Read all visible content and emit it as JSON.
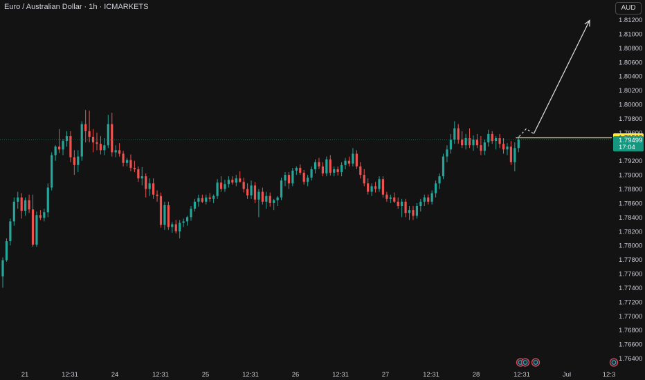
{
  "header": {
    "title": "Euro / Australian Dollar · 1h · ICMARKETS",
    "currency": "AUD"
  },
  "colors": {
    "background": "#131313",
    "up": "#26a69a",
    "down": "#ef5350",
    "last_price_line": "#f2eb8c",
    "last_price_tag": "#ffeb3b",
    "current_tag": "#15967f",
    "arrow": "#d8d8d8"
  },
  "markers": {
    "icons": [
      "event-icon",
      "event-icon",
      "event-icon",
      "event-icon"
    ]
  },
  "chart_data": {
    "type": "candlestick",
    "y_axis": {
      "ticks": [
        "1.81200",
        "1.81000",
        "1.80800",
        "1.80600",
        "1.80400",
        "1.80200",
        "1.80000",
        "1.79800",
        "1.79600",
        "1.79400",
        "1.79200",
        "1.79000",
        "1.78800",
        "1.78600",
        "1.78400",
        "1.78200",
        "1.78000",
        "1.77800",
        "1.77600",
        "1.77400",
        "1.77200",
        "1.77000",
        "1.76800",
        "1.76600",
        "1.76400"
      ],
      "range": [
        1.763,
        1.814
      ]
    },
    "x_axis": {
      "ticks": [
        "21",
        "12:31",
        "24",
        "12:31",
        "25",
        "12:31",
        "26",
        "12:31",
        "27",
        "12:31",
        "28",
        "12:31",
        "Jul",
        "12:3"
      ]
    },
    "price_labels": {
      "horizontal_line": {
        "value": 1.79525,
        "label": "1.79525"
      },
      "current_price": {
        "value": 1.79499,
        "label": "1.79499",
        "countdown": "17:04"
      }
    },
    "candles": [
      {
        "o": 1.7756,
        "h": 1.7783,
        "l": 1.774,
        "c": 1.7779
      },
      {
        "o": 1.7779,
        "h": 1.781,
        "l": 1.7777,
        "c": 1.7806
      },
      {
        "o": 1.7806,
        "h": 1.7838,
        "l": 1.78,
        "c": 1.7834
      },
      {
        "o": 1.7834,
        "h": 1.7868,
        "l": 1.7828,
        "c": 1.7862
      },
      {
        "o": 1.7862,
        "h": 1.7876,
        "l": 1.7852,
        "c": 1.7868
      },
      {
        "o": 1.7868,
        "h": 1.7874,
        "l": 1.7838,
        "c": 1.7849
      },
      {
        "o": 1.7849,
        "h": 1.7868,
        "l": 1.7842,
        "c": 1.7864
      },
      {
        "o": 1.7864,
        "h": 1.7872,
        "l": 1.7846,
        "c": 1.7851
      },
      {
        "o": 1.7851,
        "h": 1.7872,
        "l": 1.7798,
        "c": 1.7801
      },
      {
        "o": 1.7801,
        "h": 1.7848,
        "l": 1.7798,
        "c": 1.7843
      },
      {
        "o": 1.7843,
        "h": 1.785,
        "l": 1.7836,
        "c": 1.7839
      },
      {
        "o": 1.7839,
        "h": 1.7852,
        "l": 1.7834,
        "c": 1.7847
      },
      {
        "o": 1.7847,
        "h": 1.7888,
        "l": 1.784,
        "c": 1.7882
      },
      {
        "o": 1.7882,
        "h": 1.7932,
        "l": 1.7878,
        "c": 1.7928
      },
      {
        "o": 1.7928,
        "h": 1.7942,
        "l": 1.792,
        "c": 1.794
      },
      {
        "o": 1.794,
        "h": 1.7965,
        "l": 1.7931,
        "c": 1.7936
      },
      {
        "o": 1.7936,
        "h": 1.7951,
        "l": 1.7928,
        "c": 1.7948
      },
      {
        "o": 1.7948,
        "h": 1.7962,
        "l": 1.794,
        "c": 1.7955
      },
      {
        "o": 1.7955,
        "h": 1.7962,
        "l": 1.7918,
        "c": 1.7925
      },
      {
        "o": 1.7925,
        "h": 1.7935,
        "l": 1.79,
        "c": 1.7914
      },
      {
        "o": 1.7914,
        "h": 1.7935,
        "l": 1.7904,
        "c": 1.7926
      },
      {
        "o": 1.7926,
        "h": 1.7976,
        "l": 1.792,
        "c": 1.7972
      },
      {
        "o": 1.7972,
        "h": 1.7992,
        "l": 1.7946,
        "c": 1.7962
      },
      {
        "o": 1.7962,
        "h": 1.7991,
        "l": 1.7946,
        "c": 1.7954
      },
      {
        "o": 1.7954,
        "h": 1.7965,
        "l": 1.7932,
        "c": 1.7946
      },
      {
        "o": 1.7946,
        "h": 1.796,
        "l": 1.7935,
        "c": 1.7944
      },
      {
        "o": 1.7944,
        "h": 1.7955,
        "l": 1.7929,
        "c": 1.7935
      },
      {
        "o": 1.7935,
        "h": 1.7952,
        "l": 1.7928,
        "c": 1.7942
      },
      {
        "o": 1.7942,
        "h": 1.7985,
        "l": 1.7938,
        "c": 1.7972
      },
      {
        "o": 1.7972,
        "h": 1.7988,
        "l": 1.7926,
        "c": 1.7932
      },
      {
        "o": 1.7932,
        "h": 1.7942,
        "l": 1.7925,
        "c": 1.7935
      },
      {
        "o": 1.7935,
        "h": 1.7945,
        "l": 1.7926,
        "c": 1.793
      },
      {
        "o": 1.793,
        "h": 1.7934,
        "l": 1.7912,
        "c": 1.7917
      },
      {
        "o": 1.7917,
        "h": 1.7924,
        "l": 1.7912,
        "c": 1.7921
      },
      {
        "o": 1.7921,
        "h": 1.7929,
        "l": 1.7905,
        "c": 1.791
      },
      {
        "o": 1.791,
        "h": 1.792,
        "l": 1.7904,
        "c": 1.7908
      },
      {
        "o": 1.7908,
        "h": 1.7912,
        "l": 1.789,
        "c": 1.7895
      },
      {
        "o": 1.7895,
        "h": 1.7911,
        "l": 1.7885,
        "c": 1.7898
      },
      {
        "o": 1.7898,
        "h": 1.7902,
        "l": 1.7868,
        "c": 1.788
      },
      {
        "o": 1.788,
        "h": 1.7895,
        "l": 1.787,
        "c": 1.7888
      },
      {
        "o": 1.7888,
        "h": 1.7895,
        "l": 1.7866,
        "c": 1.7872
      },
      {
        "o": 1.7872,
        "h": 1.7878,
        "l": 1.7862,
        "c": 1.787
      },
      {
        "o": 1.787,
        "h": 1.7875,
        "l": 1.7825,
        "c": 1.7829
      },
      {
        "o": 1.7829,
        "h": 1.7862,
        "l": 1.7822,
        "c": 1.7857
      },
      {
        "o": 1.7857,
        "h": 1.7862,
        "l": 1.7822,
        "c": 1.7826
      },
      {
        "o": 1.7826,
        "h": 1.7833,
        "l": 1.7818,
        "c": 1.783
      },
      {
        "o": 1.783,
        "h": 1.7836,
        "l": 1.7817,
        "c": 1.782
      },
      {
        "o": 1.782,
        "h": 1.7836,
        "l": 1.781,
        "c": 1.7832
      },
      {
        "o": 1.7832,
        "h": 1.7838,
        "l": 1.7826,
        "c": 1.7834
      },
      {
        "o": 1.7834,
        "h": 1.7842,
        "l": 1.7828,
        "c": 1.784
      },
      {
        "o": 1.784,
        "h": 1.7856,
        "l": 1.7835,
        "c": 1.7852
      },
      {
        "o": 1.7852,
        "h": 1.7866,
        "l": 1.7848,
        "c": 1.7862
      },
      {
        "o": 1.7862,
        "h": 1.7872,
        "l": 1.7855,
        "c": 1.7867
      },
      {
        "o": 1.7867,
        "h": 1.7872,
        "l": 1.786,
        "c": 1.7862
      },
      {
        "o": 1.7862,
        "h": 1.7872,
        "l": 1.7858,
        "c": 1.7868
      },
      {
        "o": 1.7868,
        "h": 1.7874,
        "l": 1.7862,
        "c": 1.7866
      },
      {
        "o": 1.7866,
        "h": 1.7872,
        "l": 1.786,
        "c": 1.787
      },
      {
        "o": 1.787,
        "h": 1.7894,
        "l": 1.7866,
        "c": 1.7889
      },
      {
        "o": 1.7889,
        "h": 1.7898,
        "l": 1.7876,
        "c": 1.788
      },
      {
        "o": 1.788,
        "h": 1.7893,
        "l": 1.7876,
        "c": 1.7887
      },
      {
        "o": 1.7887,
        "h": 1.7898,
        "l": 1.7882,
        "c": 1.7893
      },
      {
        "o": 1.7893,
        "h": 1.7898,
        "l": 1.7886,
        "c": 1.7889
      },
      {
        "o": 1.7889,
        "h": 1.79,
        "l": 1.7884,
        "c": 1.7895
      },
      {
        "o": 1.7895,
        "h": 1.7905,
        "l": 1.7889,
        "c": 1.789
      },
      {
        "o": 1.789,
        "h": 1.7896,
        "l": 1.7875,
        "c": 1.788
      },
      {
        "o": 1.788,
        "h": 1.7888,
        "l": 1.7866,
        "c": 1.7871
      },
      {
        "o": 1.7871,
        "h": 1.7892,
        "l": 1.7866,
        "c": 1.7885
      },
      {
        "o": 1.7885,
        "h": 1.789,
        "l": 1.786,
        "c": 1.7865
      },
      {
        "o": 1.7865,
        "h": 1.788,
        "l": 1.784,
        "c": 1.7876
      },
      {
        "o": 1.7876,
        "h": 1.7882,
        "l": 1.7858,
        "c": 1.7862
      },
      {
        "o": 1.7862,
        "h": 1.7876,
        "l": 1.7852,
        "c": 1.787
      },
      {
        "o": 1.787,
        "h": 1.7875,
        "l": 1.7855,
        "c": 1.786
      },
      {
        "o": 1.786,
        "h": 1.7866,
        "l": 1.785,
        "c": 1.7864
      },
      {
        "o": 1.7864,
        "h": 1.787,
        "l": 1.7856,
        "c": 1.7868
      },
      {
        "o": 1.7868,
        "h": 1.7896,
        "l": 1.7864,
        "c": 1.7892
      },
      {
        "o": 1.7892,
        "h": 1.7904,
        "l": 1.7884,
        "c": 1.79
      },
      {
        "o": 1.79,
        "h": 1.7904,
        "l": 1.788,
        "c": 1.7888
      },
      {
        "o": 1.7888,
        "h": 1.791,
        "l": 1.7884,
        "c": 1.7906
      },
      {
        "o": 1.7906,
        "h": 1.7912,
        "l": 1.79,
        "c": 1.791
      },
      {
        "o": 1.791,
        "h": 1.7915,
        "l": 1.79,
        "c": 1.7903
      },
      {
        "o": 1.7903,
        "h": 1.7907,
        "l": 1.7886,
        "c": 1.789
      },
      {
        "o": 1.789,
        "h": 1.79,
        "l": 1.7884,
        "c": 1.7896
      },
      {
        "o": 1.7896,
        "h": 1.7912,
        "l": 1.7892,
        "c": 1.7908
      },
      {
        "o": 1.7908,
        "h": 1.7922,
        "l": 1.7902,
        "c": 1.7918
      },
      {
        "o": 1.7918,
        "h": 1.7924,
        "l": 1.7908,
        "c": 1.7912
      },
      {
        "o": 1.7912,
        "h": 1.7918,
        "l": 1.7898,
        "c": 1.7902
      },
      {
        "o": 1.7902,
        "h": 1.7926,
        "l": 1.7898,
        "c": 1.7922
      },
      {
        "o": 1.7922,
        "h": 1.7928,
        "l": 1.7899,
        "c": 1.7903
      },
      {
        "o": 1.7903,
        "h": 1.7912,
        "l": 1.7898,
        "c": 1.7908
      },
      {
        "o": 1.7908,
        "h": 1.7912,
        "l": 1.7899,
        "c": 1.7904
      },
      {
        "o": 1.7904,
        "h": 1.7918,
        "l": 1.7898,
        "c": 1.7914
      },
      {
        "o": 1.7914,
        "h": 1.7924,
        "l": 1.7908,
        "c": 1.792
      },
      {
        "o": 1.792,
        "h": 1.7926,
        "l": 1.7912,
        "c": 1.7916
      },
      {
        "o": 1.7916,
        "h": 1.7938,
        "l": 1.7912,
        "c": 1.793
      },
      {
        "o": 1.793,
        "h": 1.7935,
        "l": 1.7908,
        "c": 1.7912
      },
      {
        "o": 1.7912,
        "h": 1.7918,
        "l": 1.7895,
        "c": 1.79
      },
      {
        "o": 1.79,
        "h": 1.7908,
        "l": 1.7884,
        "c": 1.7888
      },
      {
        "o": 1.7888,
        "h": 1.7895,
        "l": 1.7872,
        "c": 1.7876
      },
      {
        "o": 1.7876,
        "h": 1.7888,
        "l": 1.787,
        "c": 1.7884
      },
      {
        "o": 1.7884,
        "h": 1.789,
        "l": 1.7875,
        "c": 1.788
      },
      {
        "o": 1.788,
        "h": 1.7898,
        "l": 1.7876,
        "c": 1.7894
      },
      {
        "o": 1.7894,
        "h": 1.7898,
        "l": 1.7868,
        "c": 1.7872
      },
      {
        "o": 1.7872,
        "h": 1.7876,
        "l": 1.7862,
        "c": 1.7866
      },
      {
        "o": 1.7866,
        "h": 1.7872,
        "l": 1.786,
        "c": 1.7868
      },
      {
        "o": 1.7868,
        "h": 1.7875,
        "l": 1.786,
        "c": 1.7862
      },
      {
        "o": 1.7862,
        "h": 1.7868,
        "l": 1.7852,
        "c": 1.7856
      },
      {
        "o": 1.7856,
        "h": 1.7866,
        "l": 1.784,
        "c": 1.7862
      },
      {
        "o": 1.7862,
        "h": 1.7866,
        "l": 1.784,
        "c": 1.7846
      },
      {
        "o": 1.7846,
        "h": 1.7856,
        "l": 1.7836,
        "c": 1.785
      },
      {
        "o": 1.785,
        "h": 1.7856,
        "l": 1.7836,
        "c": 1.7842
      },
      {
        "o": 1.7842,
        "h": 1.786,
        "l": 1.7838,
        "c": 1.7856
      },
      {
        "o": 1.7856,
        "h": 1.7866,
        "l": 1.7848,
        "c": 1.7862
      },
      {
        "o": 1.7862,
        "h": 1.7872,
        "l": 1.7856,
        "c": 1.7868
      },
      {
        "o": 1.7868,
        "h": 1.7872,
        "l": 1.7858,
        "c": 1.7862
      },
      {
        "o": 1.7862,
        "h": 1.7878,
        "l": 1.7858,
        "c": 1.7874
      },
      {
        "o": 1.7874,
        "h": 1.7892,
        "l": 1.7868,
        "c": 1.7888
      },
      {
        "o": 1.7888,
        "h": 1.7902,
        "l": 1.788,
        "c": 1.7898
      },
      {
        "o": 1.7898,
        "h": 1.793,
        "l": 1.7894,
        "c": 1.7926
      },
      {
        "o": 1.7926,
        "h": 1.7942,
        "l": 1.7918,
        "c": 1.7936
      },
      {
        "o": 1.7936,
        "h": 1.7958,
        "l": 1.793,
        "c": 1.795
      },
      {
        "o": 1.795,
        "h": 1.7976,
        "l": 1.7944,
        "c": 1.7966
      },
      {
        "o": 1.7966,
        "h": 1.7972,
        "l": 1.7944,
        "c": 1.795
      },
      {
        "o": 1.795,
        "h": 1.7962,
        "l": 1.7938,
        "c": 1.7942
      },
      {
        "o": 1.7942,
        "h": 1.7958,
        "l": 1.7936,
        "c": 1.7952
      },
      {
        "o": 1.7952,
        "h": 1.7966,
        "l": 1.7938,
        "c": 1.7942
      },
      {
        "o": 1.7942,
        "h": 1.7956,
        "l": 1.7934,
        "c": 1.795
      },
      {
        "o": 1.795,
        "h": 1.7958,
        "l": 1.7938,
        "c": 1.7942
      },
      {
        "o": 1.7942,
        "h": 1.7955,
        "l": 1.7928,
        "c": 1.7934
      },
      {
        "o": 1.7934,
        "h": 1.795,
        "l": 1.7928,
        "c": 1.7946
      },
      {
        "o": 1.7946,
        "h": 1.7964,
        "l": 1.794,
        "c": 1.7958
      },
      {
        "o": 1.7958,
        "h": 1.7962,
        "l": 1.7944,
        "c": 1.7948
      },
      {
        "o": 1.7948,
        "h": 1.7955,
        "l": 1.7936,
        "c": 1.7952
      },
      {
        "o": 1.7952,
        "h": 1.7958,
        "l": 1.7938,
        "c": 1.7944
      },
      {
        "o": 1.7944,
        "h": 1.7952,
        "l": 1.793,
        "c": 1.7936
      },
      {
        "o": 1.7936,
        "h": 1.7945,
        "l": 1.7928,
        "c": 1.794
      },
      {
        "o": 1.794,
        "h": 1.7948,
        "l": 1.7914,
        "c": 1.7918
      },
      {
        "o": 1.7918,
        "h": 1.7946,
        "l": 1.7905,
        "c": 1.7938
      },
      {
        "o": 1.7938,
        "h": 1.7955,
        "l": 1.7932,
        "c": 1.795
      }
    ],
    "trend_arrow": {
      "from_price": 1.79525,
      "to_price": 1.812
    }
  }
}
